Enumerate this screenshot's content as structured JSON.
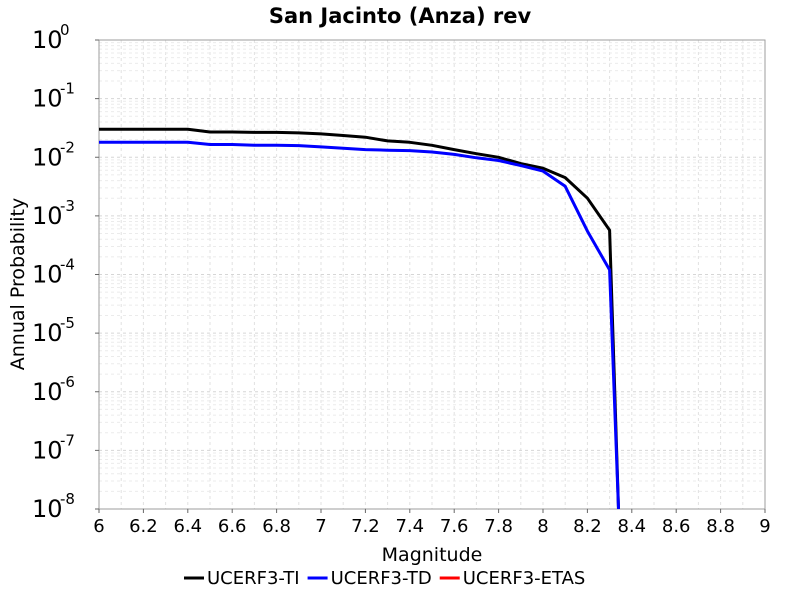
{
  "chart_data": {
    "type": "line",
    "title": "San Jacinto (Anza) rev",
    "xlabel": "Magnitude",
    "ylabel": "Annual Probability",
    "xlim": [
      6,
      9
    ],
    "ylim": [
      1e-08,
      1
    ],
    "yscale": "log",
    "grid": true,
    "legend_position": "bottom",
    "xticks": [
      "6",
      "6.2",
      "6.4",
      "6.6",
      "6.8",
      "7",
      "7.2",
      "7.4",
      "7.6",
      "7.8",
      "8",
      "8.2",
      "8.4",
      "8.6",
      "8.8",
      "9"
    ],
    "yticks": [
      {
        "value": 1,
        "base": "10",
        "exp": "0"
      },
      {
        "value": 0.1,
        "base": "10",
        "exp": "-1"
      },
      {
        "value": 0.01,
        "base": "10",
        "exp": "-2"
      },
      {
        "value": 0.001,
        "base": "10",
        "exp": "-3"
      },
      {
        "value": 0.0001,
        "base": "10",
        "exp": "-4"
      },
      {
        "value": 1e-05,
        "base": "10",
        "exp": "-5"
      },
      {
        "value": 1e-06,
        "base": "10",
        "exp": "-6"
      },
      {
        "value": 1e-07,
        "base": "10",
        "exp": "-7"
      },
      {
        "value": 1e-08,
        "base": "10",
        "exp": "-8"
      }
    ],
    "series": [
      {
        "name": "UCERF3-TI",
        "color": "#000000",
        "x": [
          6.0,
          6.1,
          6.2,
          6.3,
          6.4,
          6.5,
          6.6,
          6.7,
          6.8,
          6.9,
          7.0,
          7.1,
          7.2,
          7.3,
          7.4,
          7.5,
          7.6,
          7.7,
          7.8,
          7.9,
          8.0,
          8.1,
          8.2,
          8.3,
          8.34
        ],
        "y": [
          0.03,
          0.03,
          0.03,
          0.03,
          0.03,
          0.027,
          0.027,
          0.0265,
          0.0265,
          0.026,
          0.025,
          0.0235,
          0.022,
          0.019,
          0.018,
          0.016,
          0.0135,
          0.0115,
          0.01,
          0.0078,
          0.0065,
          0.0045,
          0.002,
          0.00057,
          1e-08
        ]
      },
      {
        "name": "UCERF3-TD",
        "color": "#0000ff",
        "x": [
          6.0,
          6.1,
          6.2,
          6.3,
          6.4,
          6.5,
          6.6,
          6.7,
          6.8,
          6.9,
          7.0,
          7.1,
          7.2,
          7.3,
          7.4,
          7.5,
          7.6,
          7.7,
          7.8,
          7.9,
          8.0,
          8.1,
          8.2,
          8.3,
          8.34
        ],
        "y": [
          0.018,
          0.018,
          0.018,
          0.018,
          0.018,
          0.0165,
          0.0165,
          0.016,
          0.016,
          0.0158,
          0.015,
          0.0142,
          0.0135,
          0.0132,
          0.013,
          0.0123,
          0.0112,
          0.0098,
          0.0088,
          0.0072,
          0.0058,
          0.0032,
          0.00055,
          0.00012,
          1e-08
        ]
      },
      {
        "name": "UCERF3-ETAS",
        "color": "#ff0000",
        "x": [],
        "y": []
      }
    ]
  }
}
